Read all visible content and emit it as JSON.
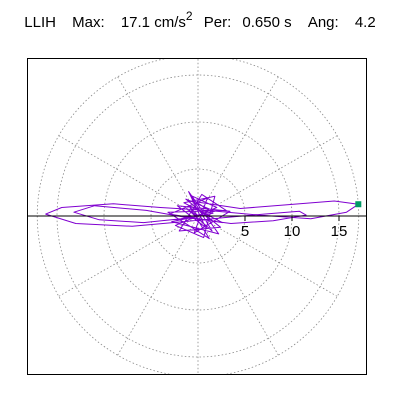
{
  "header": {
    "station": "LLIH",
    "max_label": "Max:",
    "max_value": "17.1",
    "max_unit": "cm/s",
    "max_unit_exp": "2",
    "per_label": "Per:",
    "per_value": "0.650 s",
    "ang_label": "Ang:",
    "ang_value": "4.2"
  },
  "chart_data": {
    "type": "line",
    "coordinate_system": "polar",
    "title": "",
    "radial_ticks": [
      5,
      10,
      15
    ],
    "radial_tick_labels": [
      "5",
      "10",
      "15"
    ],
    "rings": [
      5,
      10,
      15
    ],
    "rmax": 17.1,
    "spokes_deg": [
      0,
      30,
      60,
      90,
      120,
      150,
      180,
      210,
      240,
      270,
      300,
      330
    ],
    "grid": true,
    "peak": {
      "amplitude": 17.1,
      "angle_deg": 4.2,
      "marker_color": "#009966"
    },
    "series": [
      {
        "color": "#8000d0",
        "trace": [
          [
            0,
            0
          ],
          [
            -1.2,
            0.8
          ],
          [
            1.5,
            -1.6
          ],
          [
            -0.8,
            2.2
          ],
          [
            2.0,
            0.9
          ],
          [
            -2.4,
            -1.0
          ],
          [
            0.6,
            -2.3
          ],
          [
            1.8,
            2.1
          ],
          [
            -1.5,
            1.4
          ],
          [
            2.6,
            -0.7
          ],
          [
            -3.0,
            0.2
          ],
          [
            1.0,
            1.9
          ],
          [
            -0.4,
            -1.8
          ],
          [
            3.4,
            0.5
          ],
          [
            -2.2,
            1.1
          ],
          [
            0.8,
            -1.2
          ],
          [
            -1.0,
            2.6
          ],
          [
            2.2,
            -1.9
          ],
          [
            -2.8,
            -0.6
          ],
          [
            1.6,
            0.3
          ],
          [
            -0.2,
            1.5
          ],
          [
            4.5,
            0.8
          ],
          [
            9.5,
            1.2
          ],
          [
            14.5,
            1.6
          ],
          [
            17.05,
            1.25
          ],
          [
            15.8,
            0.4
          ],
          [
            12.0,
            -0.3
          ],
          [
            6.5,
            0.1
          ],
          [
            1.0,
            0.6
          ],
          [
            -4.0,
            0.9
          ],
          [
            -9.0,
            1.3
          ],
          [
            -14.5,
            0.9
          ],
          [
            -16.2,
            0.2
          ],
          [
            -13.0,
            -0.8
          ],
          [
            -7.0,
            -1.1
          ],
          [
            -1.5,
            -0.6
          ],
          [
            2.5,
            -0.2
          ],
          [
            7.0,
            0.2
          ],
          [
            10.8,
            0.5
          ],
          [
            11.5,
            0.1
          ],
          [
            8.0,
            -0.5
          ],
          [
            3.5,
            -0.8
          ],
          [
            -1.0,
            -0.2
          ],
          [
            -5.5,
            0.6
          ],
          [
            -11.0,
            1.1
          ],
          [
            -13.2,
            0.4
          ],
          [
            -10.5,
            -0.4
          ],
          [
            -5.8,
            -0.7
          ],
          [
            -1.8,
            -0.3
          ],
          [
            1.8,
            0.5
          ],
          [
            -1.3,
            1.8
          ],
          [
            2.4,
            -1.2
          ],
          [
            -2.0,
            -1.6
          ],
          [
            0.4,
            2.3
          ],
          [
            3.0,
            0.6
          ],
          [
            -3.2,
            0.4
          ],
          [
            1.2,
            -2.4
          ],
          [
            -0.9,
            1.0
          ],
          [
            0,
            0
          ]
        ]
      }
    ]
  }
}
